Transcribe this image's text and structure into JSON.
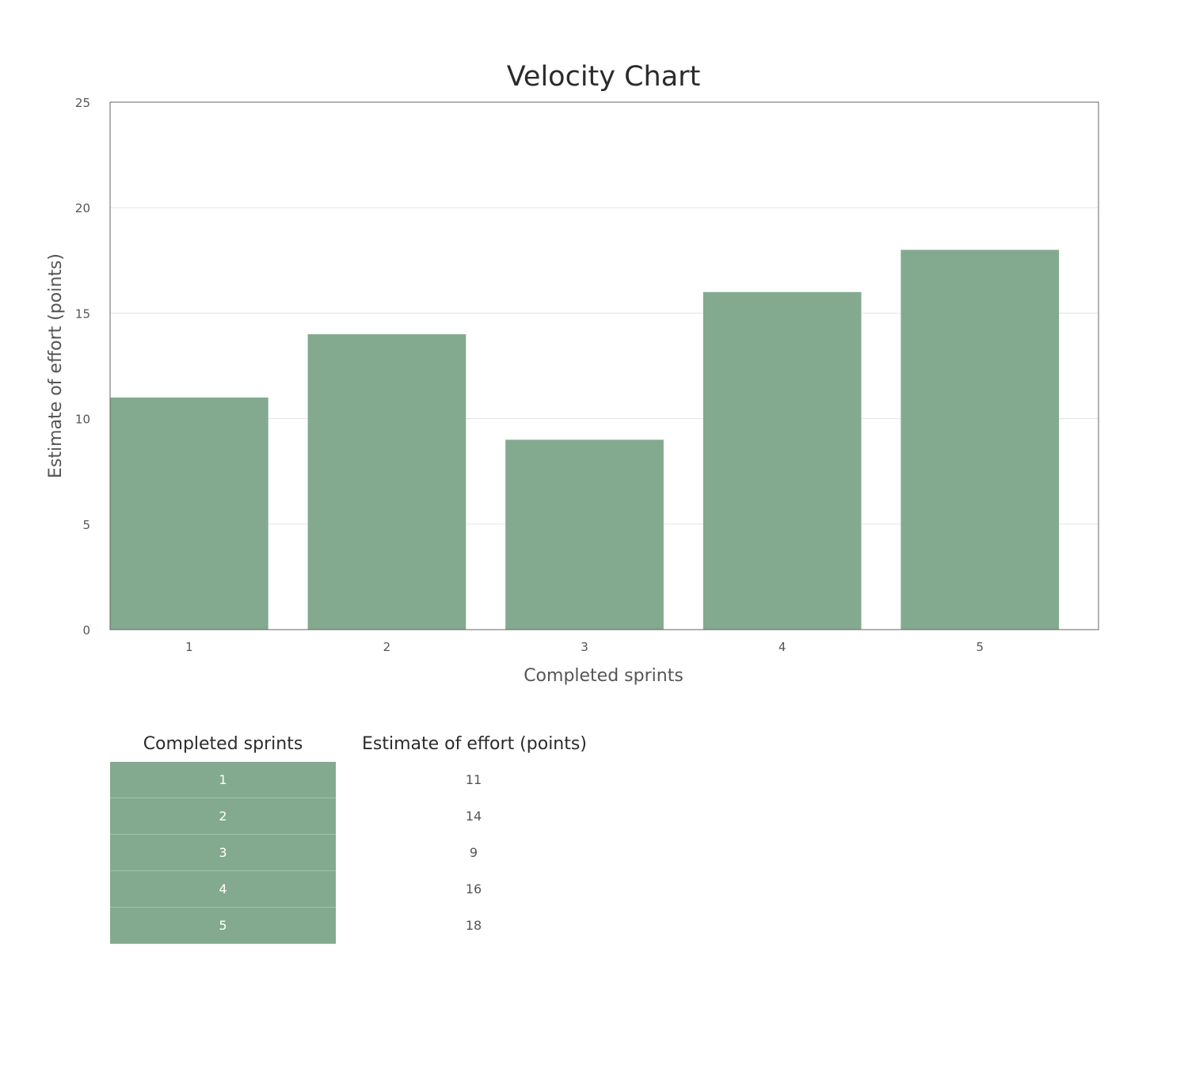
{
  "chart_data": {
    "type": "bar",
    "title": "Velocity Chart",
    "xlabel": "Completed sprints",
    "ylabel": "Estimate of effort (points)",
    "categories": [
      "1",
      "2",
      "3",
      "4",
      "5"
    ],
    "values": [
      11,
      14,
      9,
      16,
      18
    ],
    "ylim": [
      0,
      25
    ],
    "yticks": [
      0,
      5,
      10,
      15,
      20,
      25
    ],
    "grid": true,
    "legend": "none"
  },
  "colors": {
    "bar": "#83aa8e",
    "grid": "#e3e3e3",
    "frame": "#666666"
  },
  "table": {
    "headers": [
      "Completed sprints",
      "Estimate of effort (points)"
    ],
    "rows": [
      {
        "sprint": "1",
        "effort": "11"
      },
      {
        "sprint": "2",
        "effort": "14"
      },
      {
        "sprint": "3",
        "effort": "9"
      },
      {
        "sprint": "4",
        "effort": "16"
      },
      {
        "sprint": "5",
        "effort": "18"
      }
    ]
  }
}
